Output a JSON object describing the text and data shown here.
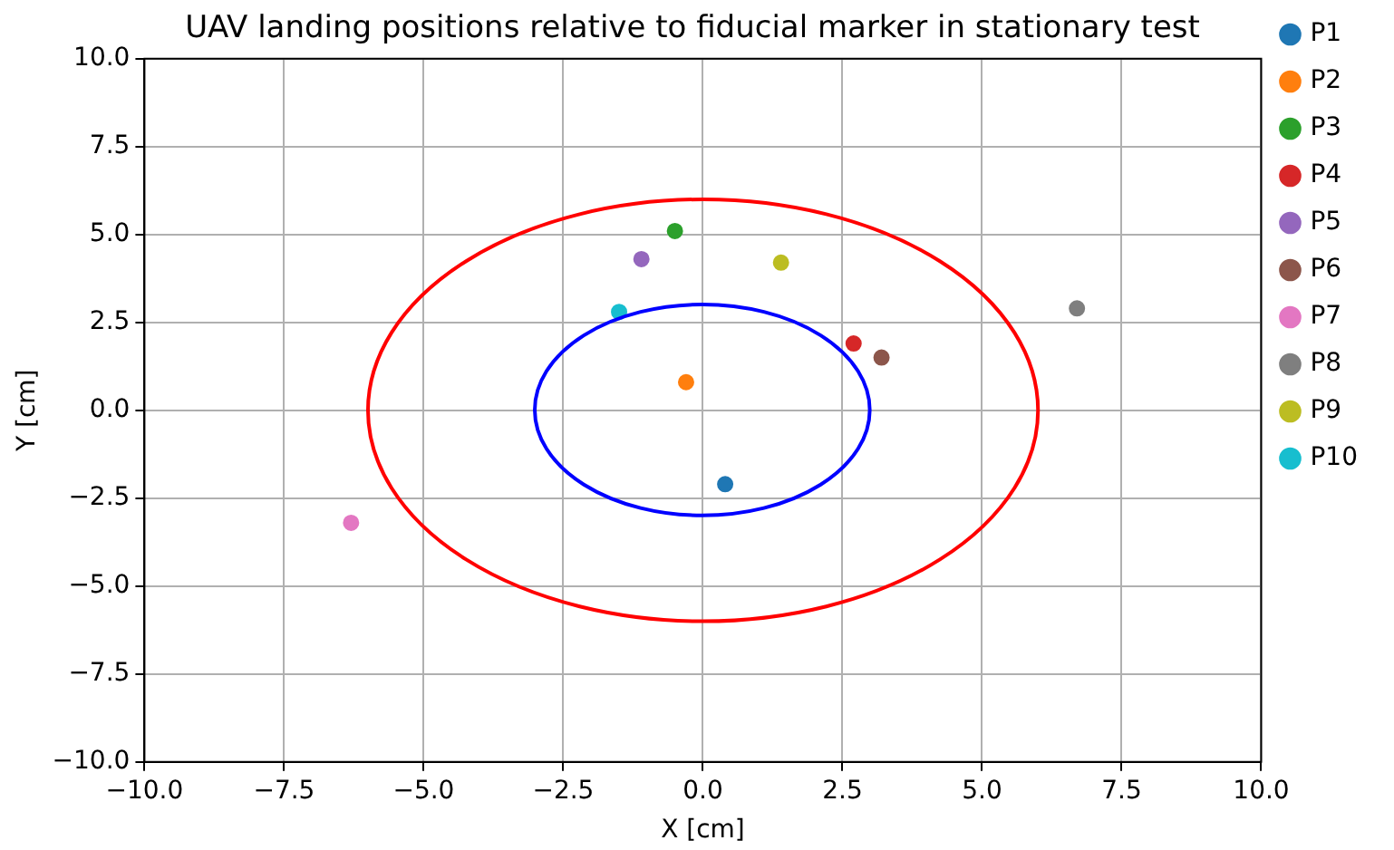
{
  "chart_data": {
    "type": "scatter",
    "title": "UAV landing positions relative to fiducial marker in stationary test",
    "xlabel": "X [cm]",
    "ylabel": "Y [cm]",
    "xlim": [
      -10,
      10
    ],
    "ylim": [
      -10,
      10
    ],
    "xticks": [
      {
        "value": -10,
        "label": "−10.0"
      },
      {
        "value": -7.5,
        "label": "−7.5"
      },
      {
        "value": -5,
        "label": "−5.0"
      },
      {
        "value": -2.5,
        "label": "−2.5"
      },
      {
        "value": 0,
        "label": "0.0"
      },
      {
        "value": 2.5,
        "label": "2.5"
      },
      {
        "value": 5,
        "label": "5.0"
      },
      {
        "value": 7.5,
        "label": "7.5"
      },
      {
        "value": 10,
        "label": "10.0"
      }
    ],
    "yticks": [
      {
        "value": -10,
        "label": "−10.0"
      },
      {
        "value": -7.5,
        "label": "−7.5"
      },
      {
        "value": -5,
        "label": "−5.0"
      },
      {
        "value": -2.5,
        "label": "−2.5"
      },
      {
        "value": 0,
        "label": "0.0"
      },
      {
        "value": 2.5,
        "label": "2.5"
      },
      {
        "value": 5,
        "label": "5.0"
      },
      {
        "value": 7.5,
        "label": "7.5"
      },
      {
        "value": 10,
        "label": "10.0"
      }
    ],
    "grid": true,
    "legend": "top right",
    "marker": "circle",
    "series": [
      {
        "name": "P1",
        "color": "#1f77b4",
        "x": [
          0.4
        ],
        "values": [
          -2.1
        ]
      },
      {
        "name": "P2",
        "color": "#ff7f0e",
        "x": [
          -0.3
        ],
        "values": [
          0.8
        ]
      },
      {
        "name": "P3",
        "color": "#2ca02c",
        "x": [
          -0.5
        ],
        "values": [
          5.1
        ]
      },
      {
        "name": "P4",
        "color": "#d62728",
        "x": [
          2.7
        ],
        "values": [
          1.9
        ]
      },
      {
        "name": "P5",
        "color": "#9467bd",
        "x": [
          -1.1
        ],
        "values": [
          4.3
        ]
      },
      {
        "name": "P6",
        "color": "#8c564b",
        "x": [
          3.2
        ],
        "values": [
          1.5
        ]
      },
      {
        "name": "P7",
        "color": "#e377c2",
        "x": [
          -6.3
        ],
        "values": [
          -3.2
        ]
      },
      {
        "name": "P8",
        "color": "#7f7f7f",
        "x": [
          6.7
        ],
        "values": [
          2.9
        ]
      },
      {
        "name": "P9",
        "color": "#bcbd22",
        "x": [
          1.4
        ],
        "values": [
          4.2
        ]
      },
      {
        "name": "P10",
        "color": "#17becf",
        "x": [
          -1.5
        ],
        "values": [
          2.8
        ]
      }
    ]
  }
}
